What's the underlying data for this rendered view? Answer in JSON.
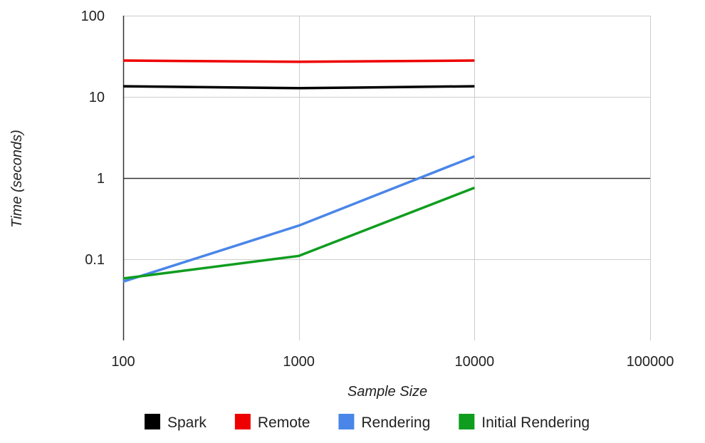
{
  "chart_data": {
    "type": "line",
    "xlabel": "Sample Size",
    "ylabel": "Time (seconds)",
    "x_scale": "log",
    "y_scale": "log",
    "xlim": [
      100,
      100000
    ],
    "ylim": [
      0.01,
      100
    ],
    "x_ticks": [
      "100",
      "1000",
      "10000",
      "100000"
    ],
    "x_tick_values": [
      100,
      1000,
      10000,
      100000
    ],
    "y_ticks": [
      "100",
      "10",
      "1",
      "0.1"
    ],
    "y_tick_values": [
      100,
      10,
      1,
      0.1
    ],
    "grid": true,
    "legend_position": "bottom",
    "x": [
      100,
      1000,
      10000
    ],
    "series": [
      {
        "name": "Spark",
        "color": "#000000",
        "values": [
          13.5,
          12.8,
          13.5
        ]
      },
      {
        "name": "Remote",
        "color": "#ee0000",
        "values": [
          28,
          27,
          28
        ]
      },
      {
        "name": "Rendering",
        "color": "#4a86e8",
        "values": [
          0.053,
          0.26,
          1.85
        ]
      },
      {
        "name": "Initial Rendering",
        "color": "#0f9d1f",
        "values": [
          0.058,
          0.11,
          0.76
        ]
      }
    ]
  }
}
